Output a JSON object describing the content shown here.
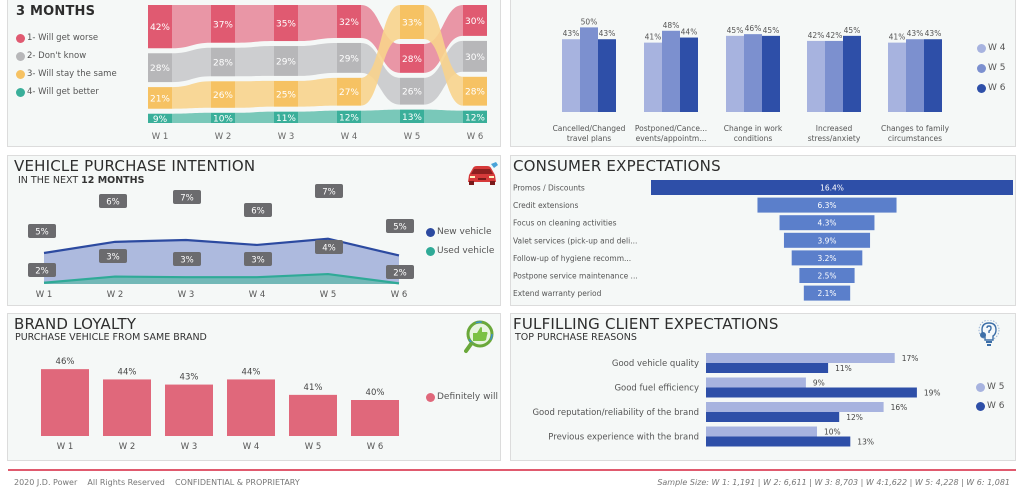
{
  "colors": {
    "worse": "#e05a71",
    "dont_know": "#b7b7b9",
    "same": "#f6c263",
    "better": "#3aaf9a",
    "w4": "#a7b3df",
    "w5": "#7c90cf",
    "w6": "#2e4fa8",
    "new_vehicle": "#2c4aa0",
    "used_vehicle": "#2faa97",
    "loyalty": "#e0687b",
    "funnel_top": "#2e4fa8",
    "funnel": "#5b7fcb"
  },
  "outlook": {
    "title": "3 MONTHS",
    "legend": [
      "1- Will get worse",
      "2- Don't know",
      "3- Will stay the same",
      "4- Will get better"
    ]
  },
  "impact": {
    "legend": [
      "W 4",
      "W 5",
      "W 6"
    ]
  },
  "vehicle": {
    "title": "VEHICLE PURCHASE INTENTION",
    "subtitle_prefix": "IN THE NEXT ",
    "subtitle_bold": "12 MONTHS",
    "legend": [
      "New vehicle",
      "Used vehicle"
    ],
    "icon": "car-icon"
  },
  "consumer": {
    "title": "CONSUMER EXPECTATIONS"
  },
  "brand": {
    "title": "BRAND LOYALTY",
    "subtitle": "PURCHASE VEHICLE FROM SAME BRAND",
    "legend": "Definitely will",
    "icon": "thumbs-up-magnifier-icon"
  },
  "fulfilling": {
    "title": "FULFILLING CLIENT EXPECTATIONS",
    "subtitle": "TOP PURCHASE REASONS",
    "legend": [
      "W 5",
      "W 6"
    ],
    "icon": "lightbulb-question-icon"
  },
  "footer": {
    "left": "2020 J.D. Power    All Rights Reserved    CONFIDENTIAL & PROPRIETARY",
    "right": "Sample Size: W 1: 1,191 | W 2: 6,611 | W 3: 8,703 | W 4:1,622 | W 5: 4,228 | W 6: 1,081"
  },
  "chart_data": [
    {
      "type": "area",
      "name": "economic-outlook-ribbon",
      "categories": [
        "W 1",
        "W 2",
        "W 3",
        "W 4",
        "W 5",
        "W 6"
      ],
      "series": [
        {
          "name": "1- Will get worse",
          "values": [
            42,
            37,
            35,
            32,
            28,
            30
          ]
        },
        {
          "name": "2- Don't know",
          "values": [
            28,
            28,
            29,
            29,
            26,
            30
          ]
        },
        {
          "name": "3- Will stay the same",
          "values": [
            21,
            26,
            25,
            27,
            33,
            28
          ]
        },
        {
          "name": "4- Will get better",
          "values": [
            9,
            10,
            11,
            12,
            13,
            12
          ]
        }
      ],
      "labels": {
        "worse": [
          "42%",
          "37%",
          "35%",
          "32%",
          "28%",
          "30%"
        ],
        "dont_know": [
          "28%",
          "28%",
          "29%",
          "29%",
          "26%",
          "30%"
        ],
        "same": [
          "21%",
          "26%",
          "25%",
          "27%",
          "33%",
          "28%"
        ],
        "better": [
          "9%",
          "10%",
          "11%",
          "12%",
          "13%",
          "12%"
        ]
      }
    },
    {
      "type": "bar",
      "name": "covid-impact",
      "categories": [
        "Cancelled/Changed travel plans",
        "Postponed/Cance... events/appointm...",
        "Change in work conditions",
        "Increased stress/anxiety",
        "Changes to family circumstances"
      ],
      "category_lines": [
        [
          "Cancelled/Changed",
          "travel plans"
        ],
        [
          "Postponed/Cance...",
          "events/appointm..."
        ],
        [
          "Change in work",
          "conditions"
        ],
        [
          "Increased",
          "stress/anxiety"
        ],
        [
          "Changes to family",
          "circumstances"
        ]
      ],
      "series": [
        {
          "name": "W 4",
          "values": [
            43,
            41,
            45,
            42,
            41
          ]
        },
        {
          "name": "W 5",
          "values": [
            50,
            48,
            46,
            42,
            43
          ]
        },
        {
          "name": "W 6",
          "values": [
            43,
            44,
            45,
            45,
            43
          ]
        }
      ],
      "ylim": [
        0,
        52
      ]
    },
    {
      "type": "area",
      "name": "vehicle-purchase-intention",
      "categories": [
        "W 1",
        "W 2",
        "W 3",
        "W 4",
        "W 5",
        "W 6"
      ],
      "series": [
        {
          "name": "New vehicle",
          "values": [
            5,
            6,
            7,
            6,
            7,
            5
          ],
          "labels": [
            "5%",
            "6%",
            "7%",
            "6%",
            "7%",
            "5%"
          ]
        },
        {
          "name": "Used vehicle",
          "values": [
            2,
            3,
            3,
            3,
            4,
            2
          ],
          "labels": [
            "2%",
            "3%",
            "3%",
            "3%",
            "4%",
            "2%"
          ]
        }
      ],
      "y_display": {
        "new": [
          5.0,
          6.8,
          7.1,
          6.3,
          7.3,
          4.6
        ],
        "used": [
          0.2,
          1.2,
          1.1,
          1.1,
          1.6,
          0.1
        ]
      }
    },
    {
      "type": "bar",
      "name": "consumer-expectations-funnel",
      "categories": [
        "Promos / Discounts",
        "Credit extensions",
        "Focus on cleaning activities",
        "Valet services (pick-up and deli...",
        "Follow-up of hygiene recomm...",
        "Postpone service maintenance ...",
        "Extend warranty period"
      ],
      "values": [
        16.4,
        6.3,
        4.3,
        3.9,
        3.2,
        2.5,
        2.1
      ],
      "labels": [
        "16.4%",
        "6.3%",
        "4.3%",
        "3.9%",
        "3.2%",
        "2.5%",
        "2.1%"
      ]
    },
    {
      "type": "bar",
      "name": "brand-loyalty",
      "categories": [
        "W 1",
        "W 2",
        "W 3",
        "W 4",
        "W 5",
        "W 6"
      ],
      "values": [
        46,
        44,
        43,
        44,
        41,
        40
      ],
      "labels": [
        "46%",
        "44%",
        "43%",
        "44%",
        "41%",
        "40%"
      ],
      "ylim": [
        33,
        47
      ]
    },
    {
      "type": "bar",
      "name": "top-purchase-reasons",
      "categories": [
        "Good vehicle quality",
        "Good fuel efficiency",
        "Good reputation/reliability of the brand",
        "Previous experience with the brand"
      ],
      "series": [
        {
          "name": "W 5",
          "values": [
            17,
            9,
            16,
            10
          ],
          "labels": [
            "17%",
            "9%",
            "16%",
            "10%"
          ]
        },
        {
          "name": "W 6",
          "values": [
            11,
            19,
            12,
            13
          ],
          "labels": [
            "11%",
            "19%",
            "12%",
            "13%"
          ]
        }
      ],
      "xlim": [
        0,
        20
      ]
    }
  ]
}
